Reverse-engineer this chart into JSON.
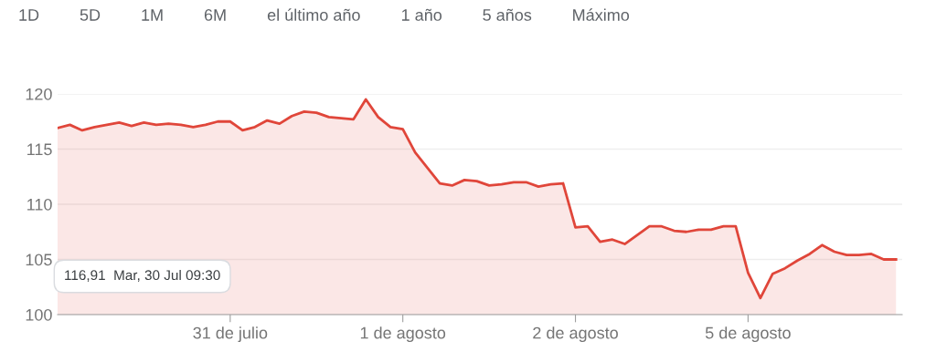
{
  "chart_data": {
    "type": "area",
    "categories": [
      null,
      null,
      null,
      null,
      null,
      null,
      null,
      null,
      null,
      null,
      null,
      null,
      null,
      null,
      "31 de julio",
      null,
      null,
      null,
      null,
      null,
      null,
      null,
      null,
      null,
      null,
      null,
      null,
      null,
      "1 de agosto",
      null,
      null,
      null,
      null,
      null,
      null,
      null,
      null,
      null,
      null,
      null,
      null,
      null,
      "2 de agosto",
      null,
      null,
      null,
      null,
      null,
      null,
      null,
      null,
      null,
      null,
      null,
      null,
      null,
      "5 de agosto",
      null,
      null,
      null,
      null,
      null,
      null,
      null,
      null,
      null,
      null,
      null,
      null
    ],
    "series": [
      {
        "color": "#e0463a",
        "values": [
          116.91,
          117.2,
          116.7,
          117.0,
          117.2,
          117.4,
          117.1,
          117.4,
          117.2,
          117.3,
          117.2,
          117.0,
          117.2,
          117.5,
          117.5,
          116.7,
          117.0,
          117.6,
          117.3,
          118.0,
          118.4,
          118.3,
          117.9,
          117.8,
          117.7,
          119.5,
          117.9,
          117.0,
          116.8,
          114.7,
          113.3,
          111.9,
          111.7,
          112.2,
          112.1,
          111.7,
          111.8,
          112.0,
          112.0,
          111.6,
          111.8,
          111.9,
          107.9,
          108.0,
          106.6,
          106.8,
          106.4,
          107.2,
          108.0,
          108.0,
          107.6,
          107.5,
          107.7,
          107.7,
          108.0,
          108.0,
          103.8,
          101.5,
          103.7,
          104.2,
          104.9,
          105.5,
          106.3,
          105.7,
          105.4,
          105.4,
          105.5,
          105.0,
          105.0
        ]
      }
    ],
    "ylim": [
      100,
      120
    ],
    "yticks": [
      100,
      105,
      110,
      115,
      120
    ],
    "grid": "y",
    "marker": "none",
    "annotations": [
      "116,91  Mar, 30 Jul 09:30",
      "1D",
      "5D",
      "1M",
      "6M",
      "el último año",
      "1 año",
      "5 años",
      "Máximo"
    ]
  }
}
